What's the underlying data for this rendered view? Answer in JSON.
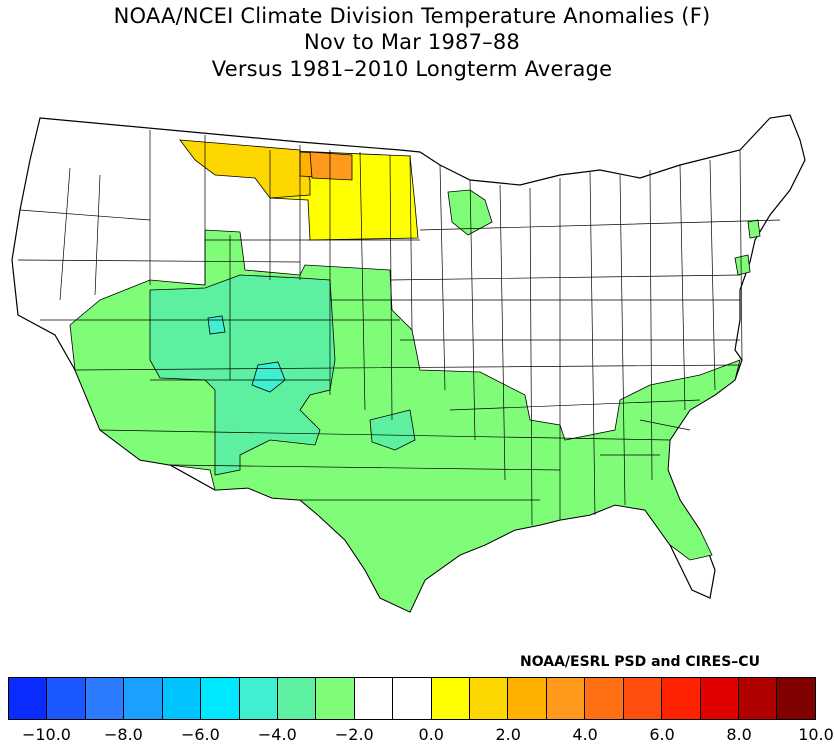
{
  "title": {
    "line1": "NOAA/NCEI Climate Division Temperature Anomalies (F)",
    "line2": "Nov to Mar 1987–88",
    "line3": "Versus 1981–2010 Longterm Average"
  },
  "credit": "NOAA/ESRL PSD and CIRES–CU",
  "map": {
    "subject": "Contiguous United States climate divisions",
    "colors": {
      "land_default": "#ffffff",
      "outline": "#000000",
      "anom_minus_2": "#7ffd78",
      "anom_minus_3": "#5df0a0",
      "anom_minus_4": "#3ff0d0",
      "anom_plus_1": "#ffff00",
      "anom_plus_2": "#ffd700",
      "anom_plus_3": "#ffb000",
      "anom_plus_4": "#ff9a1c"
    }
  },
  "colorbar": {
    "colors": [
      "#0b2cff",
      "#1c58ff",
      "#2d7cff",
      "#1aa0ff",
      "#00c4ff",
      "#00e8ff",
      "#3ff0d0",
      "#5df0a0",
      "#7ffd78",
      "#ffffff",
      "#ffffff",
      "#ffff00",
      "#ffd700",
      "#ffb000",
      "#ff9a1c",
      "#ff7014",
      "#ff4e0e",
      "#ff2200",
      "#e00000",
      "#b00000",
      "#800000"
    ],
    "tick_labels": [
      "−10.0",
      "−8.0",
      "−6.0",
      "−4.0",
      "−2.0",
      "0.0",
      "2.0",
      "4.0",
      "6.0",
      "8.0",
      "10.0"
    ]
  }
}
